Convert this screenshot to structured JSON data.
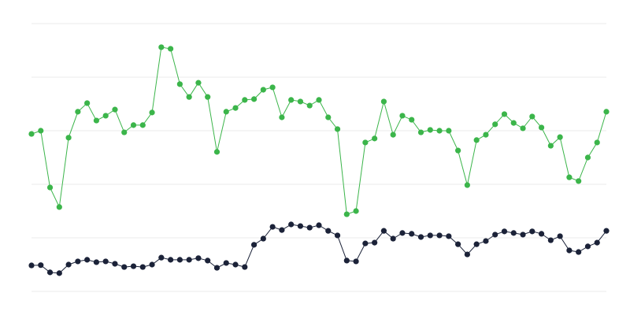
{
  "chart_data": {
    "type": "line",
    "title": "",
    "xlabel": "",
    "ylabel": "",
    "x": [
      1,
      2,
      3,
      4,
      5,
      6,
      7,
      8,
      9,
      10,
      11,
      12,
      13,
      14,
      15,
      16,
      17,
      18,
      19,
      20,
      21,
      22,
      23,
      24,
      25,
      26,
      27,
      28,
      29,
      30,
      31,
      32,
      33,
      34,
      35,
      36,
      37,
      38,
      39,
      40,
      41,
      42,
      43,
      44,
      45,
      46,
      47,
      48,
      49,
      50,
      51,
      52,
      53,
      54,
      55,
      56,
      57,
      58,
      59,
      60,
      61,
      62,
      63
    ],
    "ylim": [
      0,
      100
    ],
    "grid": true,
    "gridline_count": 6,
    "axis_tick_labels_shown": false,
    "legend": "none",
    "markers": true,
    "series": [
      {
        "color": "#3bb54a",
        "values": [
          58.8,
          60,
          38.8,
          31.5,
          57.4,
          67.1,
          70.3,
          63.8,
          65.6,
          67.9,
          59.4,
          62.1,
          62.1,
          66.8,
          91.2,
          90.6,
          77.4,
          72.6,
          77.9,
          72.6,
          52.1,
          67.1,
          68.5,
          71.5,
          71.8,
          75.3,
          76.2,
          65,
          71.5,
          70.9,
          69.4,
          71.5,
          65,
          60.6,
          28.8,
          30,
          55.6,
          57.1,
          70.9,
          58.5,
          65.6,
          64.1,
          59.4,
          60.3,
          60,
          60,
          52.6,
          39.7,
          56.5,
          58.5,
          62.4,
          66.2,
          62.9,
          60.9,
          65.3,
          61.2,
          54.4,
          57.6,
          42.6,
          41.2,
          50,
          55.6,
          67.1
        ]
      },
      {
        "color": "#1b2238",
        "values": [
          9.7,
          9.8,
          7.1,
          6.8,
          10,
          11.2,
          11.8,
          10.9,
          11.2,
          10.3,
          9.1,
          9.4,
          9.1,
          10,
          12.6,
          11.8,
          11.8,
          11.8,
          12.4,
          11.5,
          8.8,
          10.6,
          10,
          9.1,
          17.4,
          19.7,
          24.1,
          22.9,
          25,
          24.4,
          23.8,
          24.7,
          22.6,
          20.9,
          11.5,
          11.2,
          17.9,
          18.2,
          22.6,
          19.7,
          21.8,
          21.5,
          20.3,
          20.9,
          20.9,
          20.6,
          17.6,
          13.8,
          17.6,
          18.8,
          21.2,
          22.4,
          21.8,
          21.2,
          22.4,
          21.5,
          19.1,
          20.6,
          15.3,
          14.7,
          16.8,
          18.2,
          22.6
        ]
      }
    ]
  }
}
